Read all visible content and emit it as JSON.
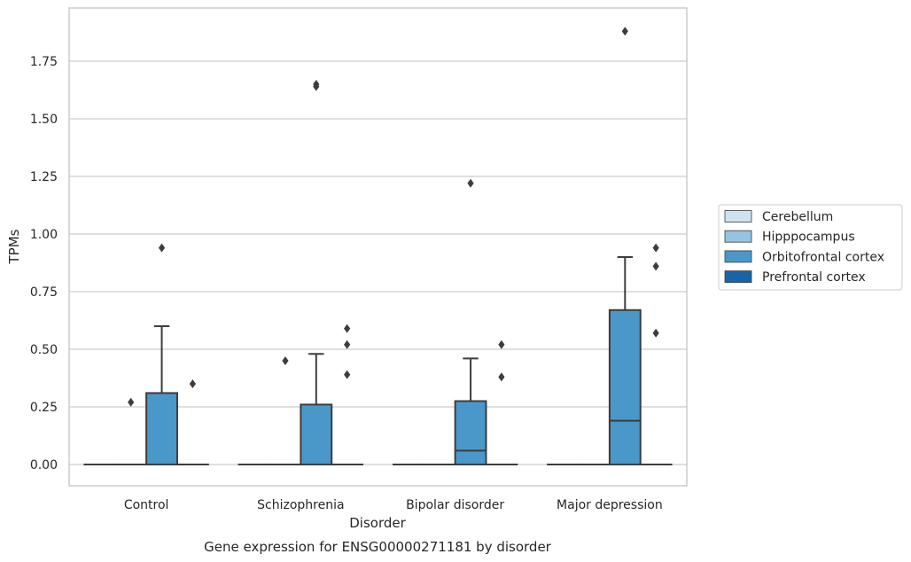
{
  "chart_data": {
    "type": "box",
    "title": "",
    "caption": "Gene expression for ENSG00000271181 by disorder",
    "xlabel": "Disorder",
    "ylabel": "TPMs",
    "ylim": [
      -0.09,
      1.97
    ],
    "yticks": [
      0.0,
      0.25,
      0.5,
      0.75,
      1.0,
      1.25,
      1.5,
      1.75
    ],
    "ytick_labels": [
      "0.00",
      "0.25",
      "0.50",
      "0.75",
      "1.00",
      "1.25",
      "1.50",
      "1.75"
    ],
    "grid": "horizontal",
    "legend_position": "right",
    "categories": [
      "Control",
      "Schizophrenia",
      "Bipolar disorder",
      "Major depression"
    ],
    "series": [
      {
        "name": "Cerebellum",
        "color": "#d0e1f2",
        "boxes": [
          {
            "q1": 0,
            "median": 0,
            "q3": 0,
            "whisker_low": 0,
            "whisker_high": 0,
            "outliers": []
          },
          {
            "q1": 0,
            "median": 0,
            "q3": 0,
            "whisker_low": 0,
            "whisker_high": 0,
            "outliers": []
          },
          {
            "q1": 0,
            "median": 0,
            "q3": 0,
            "whisker_low": 0,
            "whisker_high": 0,
            "outliers": []
          },
          {
            "q1": 0,
            "median": 0,
            "q3": 0,
            "whisker_low": 0,
            "whisker_high": 0,
            "outliers": []
          }
        ]
      },
      {
        "name": "Hipppocampus",
        "color": "#94c4df",
        "boxes": [
          {
            "q1": 0,
            "median": 0,
            "q3": 0,
            "whisker_low": 0,
            "whisker_high": 0,
            "outliers": [
              0.27
            ]
          },
          {
            "q1": 0,
            "median": 0,
            "q3": 0,
            "whisker_low": 0,
            "whisker_high": 0,
            "outliers": [
              0.45
            ]
          },
          {
            "q1": 0,
            "median": 0,
            "q3": 0,
            "whisker_low": 0,
            "whisker_high": 0,
            "outliers": []
          },
          {
            "q1": 0,
            "median": 0,
            "q3": 0,
            "whisker_low": 0,
            "whisker_high": 0,
            "outliers": []
          }
        ]
      },
      {
        "name": "Orbitofrontal cortex",
        "color": "#4a98c9",
        "boxes": [
          {
            "q1": 0,
            "median": 0,
            "q3": 0.31,
            "whisker_low": 0,
            "whisker_high": 0.6,
            "outliers": [
              0.94
            ]
          },
          {
            "q1": 0,
            "median": 0,
            "q3": 0.26,
            "whisker_low": 0,
            "whisker_high": 0.48,
            "outliers": [
              1.64,
              1.65
            ]
          },
          {
            "q1": 0,
            "median": 0.06,
            "q3": 0.275,
            "whisker_low": 0,
            "whisker_high": 0.46,
            "outliers": [
              1.22
            ]
          },
          {
            "q1": 0,
            "median": 0.19,
            "q3": 0.67,
            "whisker_low": 0,
            "whisker_high": 0.9,
            "outliers": [
              1.88
            ]
          }
        ]
      },
      {
        "name": "Prefrontal cortex",
        "color": "#1764ab",
        "boxes": [
          {
            "q1": 0,
            "median": 0,
            "q3": 0,
            "whisker_low": 0,
            "whisker_high": 0,
            "outliers": [
              0.35
            ]
          },
          {
            "q1": 0,
            "median": 0,
            "q3": 0,
            "whisker_low": 0,
            "whisker_high": 0,
            "outliers": [
              0.39,
              0.52,
              0.59
            ]
          },
          {
            "q1": 0,
            "median": 0,
            "q3": 0,
            "whisker_low": 0,
            "whisker_high": 0,
            "outliers": [
              0.38,
              0.52
            ]
          },
          {
            "q1": 0,
            "median": 0,
            "q3": 0,
            "whisker_low": 0,
            "whisker_high": 0,
            "outliers": [
              0.57,
              0.86,
              0.94
            ]
          }
        ]
      }
    ]
  }
}
